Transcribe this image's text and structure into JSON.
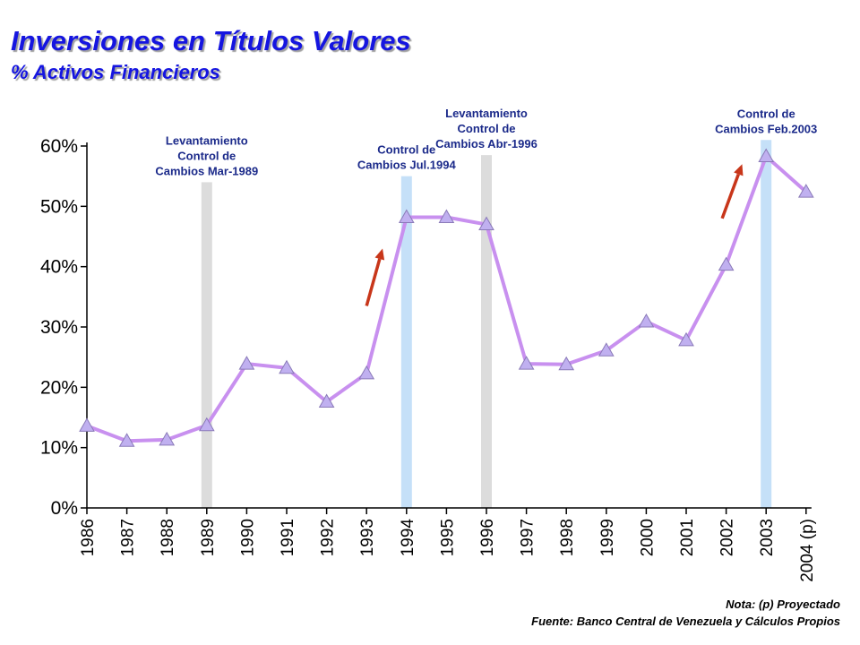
{
  "title": "Inversiones en Títulos Valores",
  "subtitle": "% Activos Financieros",
  "note": "Nota: (p) Proyectado",
  "source": "Fuente: Banco Central de Venezuela y Cálculos Propios",
  "colors": {
    "title": "#1515e0",
    "line": "#c890ef",
    "marker": "#c0b0f0",
    "band_gray": "#dcdcdc",
    "band_blue": "#c5e0f8",
    "arrow": "#c8361a",
    "annotation": "#1b2a8a"
  },
  "chart_data": {
    "type": "line",
    "categories": [
      "1986",
      "1987",
      "1988",
      "1989",
      "1990",
      "1991",
      "1992",
      "1993",
      "1994",
      "1995",
      "1996",
      "1997",
      "1998",
      "1999",
      "2000",
      "2001",
      "2002",
      "2003",
      "2004 (p)"
    ],
    "series": [
      {
        "name": "",
        "values": [
          13.6,
          11.1,
          11.3,
          13.7,
          23.9,
          23.2,
          17.6,
          22.3,
          48.2,
          48.2,
          47.0,
          23.9,
          23.8,
          26.1,
          30.9,
          27.8,
          40.3,
          58.3,
          52.4
        ]
      }
    ],
    "ylim": [
      0,
      60
    ],
    "yticks": [
      "0%",
      "10%",
      "20%",
      "30%",
      "40%",
      "50%",
      "60%"
    ],
    "bands": [
      {
        "category": "1989",
        "color": "gray",
        "top": 54,
        "lines": [
          "Levantamiento",
          "Control de",
          "Cambios Mar-1989"
        ]
      },
      {
        "category": "1994",
        "color": "blue",
        "top": 55,
        "lines": [
          "Control de",
          "Cambios Jul.1994"
        ]
      },
      {
        "category": "1996",
        "color": "gray",
        "top": 58.5,
        "lines": [
          "Levantamiento",
          "Control de",
          "Cambios Abr-1996"
        ]
      },
      {
        "category": "2003",
        "color": "blue",
        "top": 61,
        "lines": [
          "Control de",
          "Cambios Feb.2003"
        ]
      }
    ],
    "arrows": [
      {
        "from": [
          7.0,
          33.5
        ],
        "to": [
          7.4,
          43
        ]
      },
      {
        "from": [
          15.9,
          48
        ],
        "to": [
          16.4,
          57
        ]
      }
    ]
  }
}
